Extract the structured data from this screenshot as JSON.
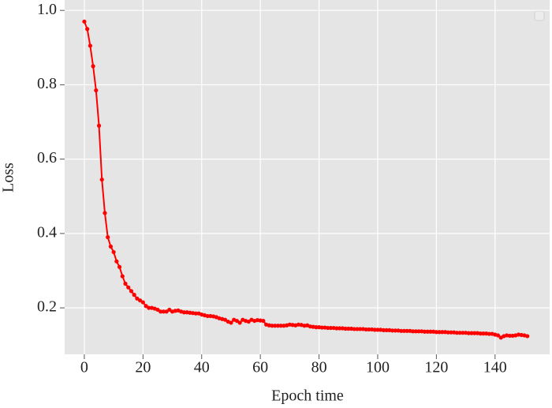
{
  "chart_data": {
    "type": "line",
    "xlabel": "Epoch time",
    "ylabel": "Loss",
    "xlim": [
      -6.7,
      158.6
    ],
    "ylim": [
      0.075,
      1.028
    ],
    "xticks": [
      0,
      20,
      40,
      60,
      80,
      100,
      120,
      140
    ],
    "yticks": [
      0.2,
      0.4,
      0.6,
      0.8,
      {
        "value": 1,
        "label": "1.0"
      }
    ],
    "grid": true,
    "x": [
      0,
      1,
      2,
      3,
      4,
      5,
      6,
      7,
      8,
      9,
      10,
      11,
      12,
      13,
      14,
      15,
      16,
      17,
      18,
      19,
      20,
      21,
      22,
      23,
      24,
      25,
      26,
      27,
      28,
      29,
      30,
      31,
      32,
      33,
      34,
      35,
      36,
      37,
      38,
      39,
      40,
      41,
      42,
      43,
      44,
      45,
      46,
      47,
      48,
      49,
      50,
      51,
      52,
      53,
      54,
      55,
      56,
      57,
      58,
      59,
      60,
      61,
      62,
      63,
      64,
      65,
      66,
      67,
      68,
      69,
      70,
      71,
      72,
      73,
      74,
      75,
      76,
      77,
      78,
      79,
      80,
      81,
      82,
      83,
      84,
      85,
      86,
      87,
      88,
      89,
      90,
      91,
      92,
      93,
      94,
      95,
      96,
      97,
      98,
      99,
      100,
      101,
      102,
      103,
      104,
      105,
      106,
      107,
      108,
      109,
      110,
      111,
      112,
      113,
      114,
      115,
      116,
      117,
      118,
      119,
      120,
      121,
      122,
      123,
      124,
      125,
      126,
      127,
      128,
      129,
      130,
      131,
      132,
      133,
      134,
      135,
      136,
      137,
      138,
      139,
      140,
      141,
      142,
      143,
      144,
      145,
      146,
      147,
      148,
      149,
      150,
      151
    ],
    "series": [
      {
        "color": "#ff0000",
        "values": [
          0.97,
          0.95,
          0.905,
          0.85,
          0.785,
          0.69,
          0.545,
          0.455,
          0.39,
          0.365,
          0.35,
          0.325,
          0.31,
          0.285,
          0.265,
          0.255,
          0.245,
          0.235,
          0.225,
          0.22,
          0.215,
          0.205,
          0.2,
          0.2,
          0.198,
          0.195,
          0.19,
          0.19,
          0.19,
          0.195,
          0.19,
          0.192,
          0.193,
          0.19,
          0.188,
          0.188,
          0.187,
          0.186,
          0.185,
          0.185,
          0.182,
          0.18,
          0.178,
          0.178,
          0.177,
          0.175,
          0.172,
          0.17,
          0.168,
          0.163,
          0.16,
          0.168,
          0.165,
          0.16,
          0.168,
          0.165,
          0.163,
          0.168,
          0.165,
          0.167,
          0.166,
          0.165,
          0.155,
          0.153,
          0.152,
          0.152,
          0.152,
          0.152,
          0.152,
          0.153,
          0.155,
          0.154,
          0.153,
          0.155,
          0.154,
          0.152,
          0.153,
          0.15,
          0.149,
          0.148,
          0.148,
          0.147,
          0.147,
          0.146,
          0.146,
          0.146,
          0.145,
          0.145,
          0.145,
          0.144,
          0.144,
          0.144,
          0.143,
          0.143,
          0.143,
          0.143,
          0.142,
          0.142,
          0.142,
          0.141,
          0.141,
          0.141,
          0.14,
          0.14,
          0.14,
          0.139,
          0.139,
          0.139,
          0.138,
          0.138,
          0.138,
          0.138,
          0.137,
          0.137,
          0.137,
          0.137,
          0.136,
          0.136,
          0.136,
          0.136,
          0.135,
          0.135,
          0.135,
          0.135,
          0.134,
          0.134,
          0.134,
          0.133,
          0.133,
          0.133,
          0.133,
          0.132,
          0.132,
          0.132,
          0.132,
          0.131,
          0.131,
          0.131,
          0.13,
          0.13,
          0.128,
          0.126,
          0.12,
          0.124,
          0.126,
          0.125,
          0.125,
          0.126,
          0.128,
          0.127,
          0.126,
          0.124
        ]
      }
    ]
  }
}
